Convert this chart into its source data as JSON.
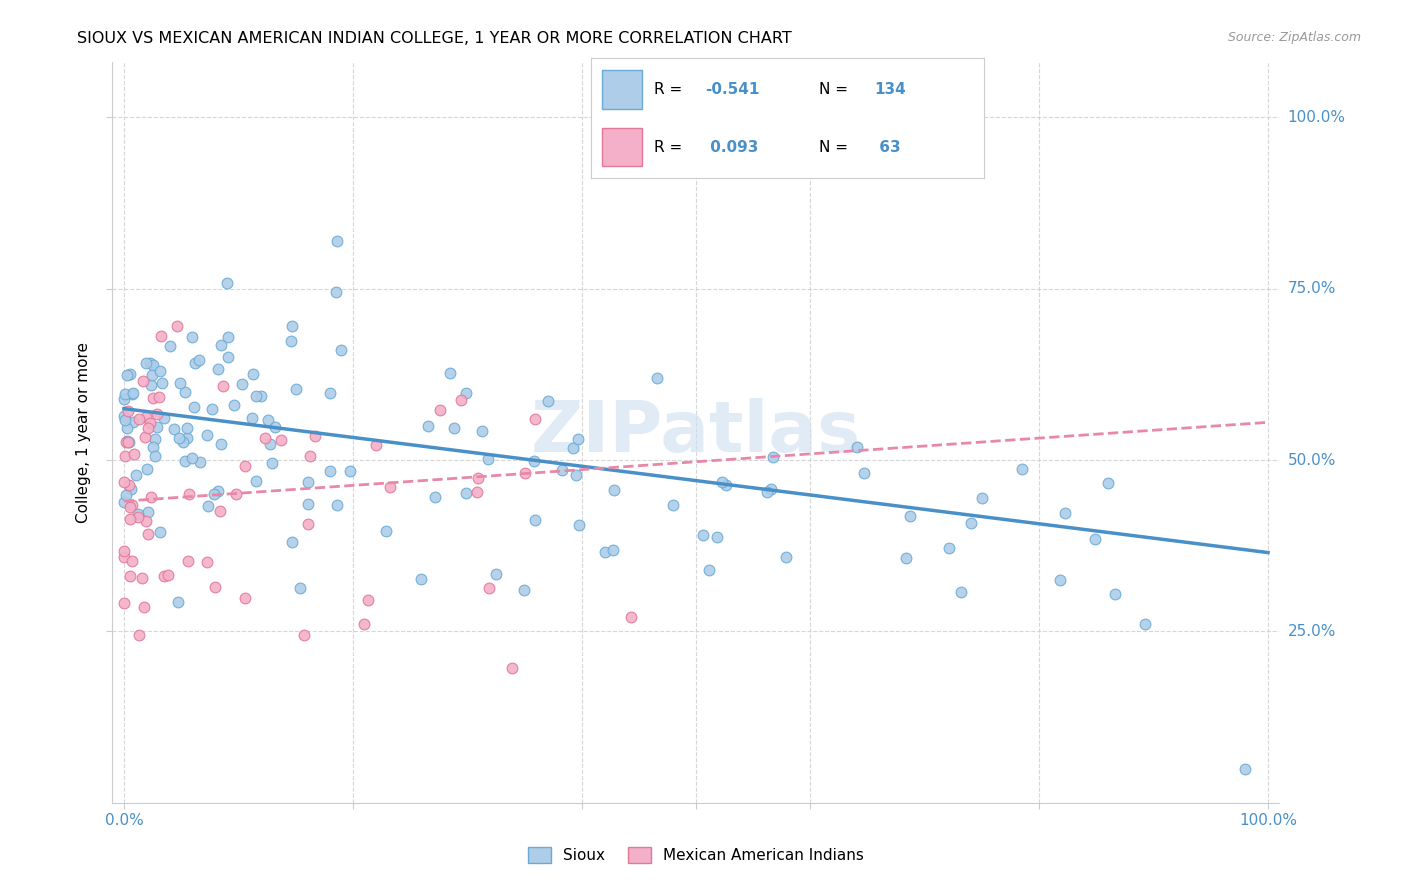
{
  "title": "SIOUX VS MEXICAN AMERICAN INDIAN COLLEGE, 1 YEAR OR MORE CORRELATION CHART",
  "source": "Source: ZipAtlas.com",
  "ylabel": "College, 1 year or more",
  "legend_label1": "Sioux",
  "legend_label2": "Mexican American Indians",
  "R1": -0.541,
  "N1": 134,
  "R2": 0.093,
  "N2": 63,
  "color_blue_face": "#aecde8",
  "color_blue_edge": "#6aaad6",
  "color_pink_face": "#f4b0c8",
  "color_pink_edge": "#e07898",
  "color_blue_line": "#4a90c8",
  "color_pink_line": "#e888a8",
  "color_text_blue": "#4a90c8",
  "color_grid": "#cccccc",
  "watermark": "ZIPatlas",
  "watermark_color": "#ccdff0",
  "ytick_labels": [
    "25.0%",
    "50.0%",
    "75.0%",
    "100.0%"
  ],
  "ytick_vals": [
    0.25,
    0.5,
    0.75,
    1.0
  ],
  "xlim": [
    0.0,
    1.0
  ],
  "ylim": [
    0.0,
    1.08
  ],
  "sioux_intercept": 0.575,
  "sioux_slope": -0.21,
  "mai_intercept": 0.44,
  "mai_slope": 0.115
}
